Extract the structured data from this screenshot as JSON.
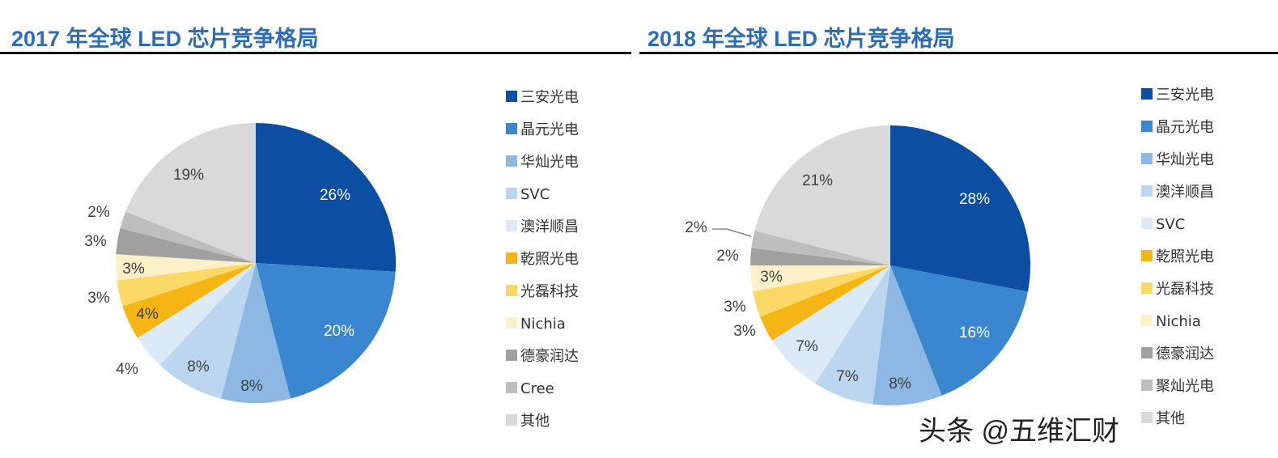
{
  "chart_data": [
    {
      "type": "pie",
      "title": "2017 年全球 LED 芯片竞争格局",
      "labels": [
        "三安光电",
        "晶元光电",
        "华灿光电",
        "SVC",
        "澳洋顺昌",
        "乾照光电",
        "光磊科技",
        "Nichia",
        "德豪润达",
        "Cree",
        "其他"
      ],
      "values": [
        26,
        20,
        8,
        8,
        4,
        4,
        3,
        3,
        3,
        2,
        19
      ],
      "colors": [
        "#0B4EA2",
        "#3A87D0",
        "#8DB8E4",
        "#BDD6EF",
        "#DCE9F6",
        "#F5B514",
        "#FCD966",
        "#FEF0C8",
        "#A0A0A0",
        "#BEBEBE",
        "#D9D9D9"
      ],
      "legend": "right"
    },
    {
      "type": "pie",
      "title": "2018 年全球 LED 芯片竞争格局",
      "labels": [
        "三安光电",
        "晶元光电",
        "华灿光电",
        "澳洋顺昌",
        "SVC",
        "乾照光电",
        "光磊科技",
        "Nichia",
        "德豪润达",
        "聚灿光电",
        "其他"
      ],
      "values": [
        28,
        16,
        8,
        7,
        7,
        3,
        3,
        3,
        2,
        2,
        21
      ],
      "colors": [
        "#0B4EA2",
        "#3A87D0",
        "#8DB8E4",
        "#BDD6EF",
        "#DCE9F6",
        "#F5B514",
        "#FCD966",
        "#FEF0C8",
        "#A0A0A0",
        "#BEBEBE",
        "#D9D9D9"
      ],
      "legend": "right"
    }
  ],
  "watermark": "头条 @五维汇财"
}
